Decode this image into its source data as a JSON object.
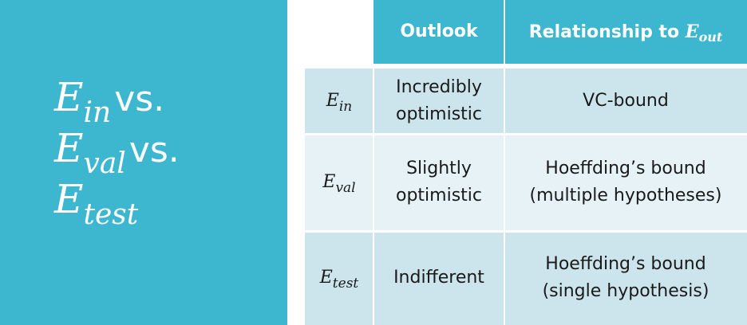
{
  "title": {
    "line1": {
      "symbol": "E",
      "sub": "in",
      "suffix": "vs."
    },
    "line2": {
      "symbol": "E",
      "sub": "val",
      "suffix": "vs."
    },
    "line3": {
      "symbol": "E",
      "sub": "test"
    }
  },
  "table": {
    "header": {
      "outlook": "Outlook",
      "relationship_prefix": "Relationship to",
      "relationship_symbol": "E",
      "relationship_sub": "out"
    },
    "rows": [
      {
        "symbol": "E",
        "sub": "in",
        "outlook_1": "Incredibly",
        "outlook_2": "optimistic",
        "relation_1": "VC-bound",
        "relation_2": ""
      },
      {
        "symbol": "E",
        "sub": "val",
        "outlook_1": "Slightly",
        "outlook_2": "optimistic",
        "relation_1": "Hoeffding’s bound",
        "relation_2": "(multiple hypotheses)"
      },
      {
        "symbol": "E",
        "sub": "test",
        "outlook_1": "Indifferent",
        "outlook_2": "",
        "relation_1": "Hoeffding’s bound",
        "relation_2": "(single hypothesis)"
      }
    ]
  },
  "colors": {
    "accent": "#3db6cf",
    "row_dark": "#cce4ec",
    "row_light": "#e6f2f6"
  }
}
